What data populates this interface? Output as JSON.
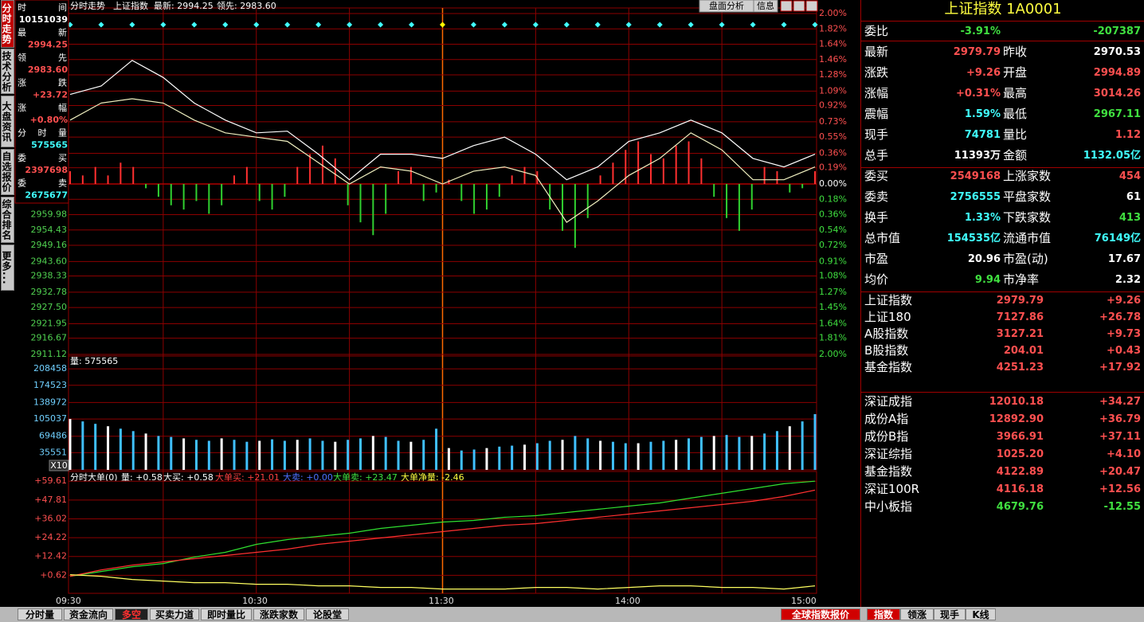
{
  "left_tabs": [
    "分时走势",
    "技术分析",
    "大盘资讯",
    "自选报价",
    "综合排名",
    "更多..."
  ],
  "info": [
    {
      "label": "时间",
      "value": "10151039",
      "color": "#ffffff"
    },
    {
      "label": "最新",
      "value": "2994.25",
      "color": "#ff5050"
    },
    {
      "label": "领先",
      "value": "2983.60",
      "color": "#ff5050"
    },
    {
      "label": "涨跌",
      "value": "+23.72",
      "color": "#ff5050"
    },
    {
      "label": "涨幅",
      "value": "+0.80%",
      "color": "#ff5050"
    },
    {
      "label": "分时量",
      "value": "575565",
      "color": "#40ffff"
    },
    {
      "label": "委买",
      "value": "2397698",
      "color": "#ff5050"
    },
    {
      "label": "委卖",
      "value": "2675677",
      "color": "#40ffff"
    }
  ],
  "header": {
    "panel": "分时走势",
    "name": "上证指数",
    "latest": "最新: 2994.25",
    "lead": "领先: 2983.60",
    "buttons": [
      "盘面分析",
      "信息"
    ]
  },
  "price_chart": {
    "ylim": [
      -2,
      2
    ],
    "pct_ticks": [
      {
        "value": 2,
        "label": "2.00%"
      },
      {
        "value": 1.82,
        "label": "1.82%"
      },
      {
        "value": 1.64,
        "label": "1.64%"
      },
      {
        "value": 1.46,
        "label": "1.46%"
      },
      {
        "value": 1.28,
        "label": "1.28%"
      },
      {
        "value": 1.09,
        "label": "1.09%"
      },
      {
        "value": 0.92,
        "label": "0.92%"
      },
      {
        "value": 0.73,
        "label": "0.73%"
      },
      {
        "value": 0.55,
        "label": "0.55%"
      },
      {
        "value": 0.36,
        "label": "0.36%"
      },
      {
        "value": 0.19,
        "label": "0.19%"
      },
      {
        "value": 0,
        "label": "0.00%"
      },
      {
        "value": -0.18,
        "label": "0.18%"
      },
      {
        "value": -0.36,
        "label": "0.36%"
      },
      {
        "value": -0.54,
        "label": "0.54%"
      },
      {
        "value": -0.72,
        "label": "0.72%"
      },
      {
        "value": -0.91,
        "label": "0.91%"
      },
      {
        "value": -1.08,
        "label": "1.08%"
      },
      {
        "value": -1.27,
        "label": "1.27%"
      },
      {
        "value": -1.45,
        "label": "1.45%"
      },
      {
        "value": -1.64,
        "label": "1.64%"
      },
      {
        "value": -1.81,
        "label": "1.81%"
      },
      {
        "value": -2,
        "label": "2.00%"
      }
    ],
    "price_ticks": [
      {
        "value": -0.36,
        "label": "2959.98"
      },
      {
        "value": -0.54,
        "label": "2954.43"
      },
      {
        "value": -0.72,
        "label": "2949.16"
      },
      {
        "value": -0.91,
        "label": "2943.60"
      },
      {
        "value": -1.08,
        "label": "2938.33"
      },
      {
        "value": -1.27,
        "label": "2932.78"
      },
      {
        "value": -1.45,
        "label": "2927.50"
      },
      {
        "value": -1.64,
        "label": "2921.95"
      },
      {
        "value": -1.81,
        "label": "2916.67"
      },
      {
        "value": -2,
        "label": "2911.12"
      }
    ],
    "series": [
      {
        "color": "#ffffff",
        "values": [
          1.05,
          1.15,
          1.45,
          1.25,
          0.95,
          0.75,
          0.6,
          0.62,
          0.35,
          0.05,
          0.35,
          0.35,
          0.3,
          0.45,
          0.55,
          0.35,
          0.05,
          0.2,
          0.5,
          0.6,
          0.75,
          0.6,
          0.3,
          0.2,
          0.35
        ]
      },
      {
        "color": "#f0f0c0",
        "values": [
          0.75,
          0.95,
          1.0,
          0.95,
          0.75,
          0.6,
          0.55,
          0.5,
          0.25,
          0.0,
          0.2,
          0.15,
          0.0,
          0.15,
          0.2,
          0.1,
          -0.45,
          -0.2,
          0.1,
          0.3,
          0.6,
          0.4,
          0.05,
          0.05,
          0.2
        ]
      }
    ],
    "bars": [
      0.15,
      0.1,
      0.2,
      0.1,
      0.25,
      0.2,
      -0.05,
      -0.15,
      -0.25,
      -0.3,
      -0.2,
      -0.35,
      -0.25,
      0.1,
      0.2,
      -0.2,
      -0.3,
      -0.15,
      0.2,
      0.35,
      0.45,
      0.3,
      -0.25,
      -0.45,
      -0.6,
      -0.35,
      0.15,
      0.2,
      -0.2,
      -0.1,
      0.05,
      -0.2,
      -0.35,
      -0.3,
      -0.15,
      0.1,
      0.2,
      0.15,
      -0.3,
      -0.55,
      -0.75,
      -0.4,
      0.1,
      0.25,
      0.4,
      0.5,
      0.35,
      0.3,
      0.45,
      0.5,
      0.3,
      -0.15,
      -0.4,
      -0.55,
      -0.3,
      0.2,
      0.15,
      -0.1,
      -0.05,
      0.15
    ]
  },
  "volume_chart": {
    "label": "量: 575565",
    "unit": "X10",
    "ylim": [
      0,
      230000
    ],
    "yticks": [
      208458,
      174523,
      138972,
      105037,
      69486,
      35551
    ],
    "values": [
      105000,
      100000,
      95000,
      90000,
      85000,
      80000,
      75000,
      70000,
      68000,
      65000,
      62000,
      60000,
      65000,
      62000,
      58000,
      60000,
      63000,
      60000,
      62000,
      65000,
      60000,
      58000,
      62000,
      65000,
      70000,
      68000,
      60000,
      58000,
      62000,
      85000,
      45000,
      40000,
      42000,
      45000,
      48000,
      50000,
      52000,
      55000,
      60000,
      62000,
      70000,
      65000,
      60000,
      58000,
      55000,
      55000,
      58000,
      60000,
      62000,
      65000,
      68000,
      70000,
      72000,
      68000,
      70000,
      75000,
      80000,
      90000,
      100000,
      115000
    ]
  },
  "order_chart": {
    "header": [
      {
        "text": "分时大单(0)",
        "color": "#ffffff"
      },
      {
        "text": "量: +0.58",
        "color": "#ffffff"
      },
      {
        "text": "大买: +0.58",
        "color": "#ffffff"
      },
      {
        "text": "大单买: +21.01",
        "color": "#ff4040"
      },
      {
        "text": "大卖: +0.00",
        "color": "#5070ff"
      },
      {
        "text": "大单卖: +23.47",
        "color": "#40e040"
      },
      {
        "text": "大单净量: -2.46",
        "color": "#ffff40"
      }
    ],
    "ylim": [
      -10.7,
      65.7
    ],
    "yticks": [
      {
        "value": 59.61,
        "label": "+59.61"
      },
      {
        "value": 47.81,
        "label": "+47.81"
      },
      {
        "value": 36.02,
        "label": "+36.02"
      },
      {
        "value": 24.22,
        "label": "+24.22"
      },
      {
        "value": 12.42,
        "label": "+12.42"
      },
      {
        "value": 0.62,
        "label": "+0.62"
      }
    ],
    "series": [
      {
        "color": "#30e030",
        "values": [
          0,
          3,
          6,
          8,
          12,
          15,
          20,
          23,
          25,
          27,
          30,
          32,
          34,
          35,
          37,
          38,
          40,
          42,
          44,
          46,
          49,
          52,
          55,
          58,
          59.6
        ]
      },
      {
        "color": "#ff3030",
        "values": [
          0,
          4,
          7,
          9,
          11,
          13,
          15,
          17,
          20,
          22,
          24,
          26,
          28,
          30,
          32,
          33,
          35,
          37,
          39,
          41,
          43,
          45,
          47,
          50,
          54
        ]
      },
      {
        "color": "#ffff60",
        "values": [
          1,
          0,
          -2,
          -3,
          -4,
          -4,
          -5,
          -5,
          -6,
          -6,
          -7,
          -7,
          -8,
          -8,
          -8,
          -7,
          -7,
          -8,
          -7,
          -6,
          -6,
          -7,
          -7,
          -8,
          -6
        ]
      }
    ]
  },
  "time_axis": [
    "09:30",
    "10:30",
    "11:30",
    "14:00",
    "15:00"
  ],
  "quote": {
    "title": "上证指数 1A0001",
    "ratio": {
      "label": "委比",
      "pct": "-3.91%",
      "diff": "-207387"
    },
    "rows": [
      [
        {
          "label": "最新",
          "value": "2979.79",
          "color": "#ff5050"
        },
        {
          "label": "昨收",
          "value": "2970.53",
          "color": "#ffffff"
        }
      ],
      [
        {
          "label": "涨跌",
          "value": "+9.26",
          "color": "#ff5050"
        },
        {
          "label": "开盘",
          "value": "2994.89",
          "color": "#ff5050"
        }
      ],
      [
        {
          "label": "涨幅",
          "value": "+0.31%",
          "color": "#ff5050"
        },
        {
          "label": "最高",
          "value": "3014.26",
          "color": "#ff5050"
        }
      ],
      [
        {
          "label": "震幅",
          "value": "1.59%",
          "color": "#40ffff"
        },
        {
          "label": "最低",
          "value": "2967.11",
          "color": "#40e040"
        }
      ],
      [
        {
          "label": "现手",
          "value": "74781",
          "color": "#40ffff"
        },
        {
          "label": "量比",
          "value": "1.12",
          "color": "#ff5050"
        }
      ],
      [
        {
          "label": "总手",
          "value": "11393万",
          "color": "#ffffff"
        },
        {
          "label": "金额",
          "value": "1132.05亿",
          "color": "#40ffff"
        }
      ],
      [
        {
          "label": "委买",
          "value": "2549168",
          "color": "#ff5050"
        },
        {
          "label": "上涨家数",
          "value": "454",
          "color": "#ff5050"
        }
      ],
      [
        {
          "label": "委卖",
          "value": "2756555",
          "color": "#40ffff"
        },
        {
          "label": "平盘家数",
          "value": "61",
          "color": "#ffffff"
        }
      ],
      [
        {
          "label": "换手",
          "value": "1.33%",
          "color": "#40ffff"
        },
        {
          "label": "下跌家数",
          "value": "413",
          "color": "#40e040"
        }
      ],
      [
        {
          "label": "总市值",
          "value": "154535亿",
          "color": "#40ffff"
        },
        {
          "label": "流通市值",
          "value": "76149亿",
          "color": "#40ffff"
        }
      ],
      [
        {
          "label": "市盈",
          "value": "20.96",
          "color": "#ffffff"
        },
        {
          "label": "市盈(动)",
          "value": "17.67",
          "color": "#ffffff"
        }
      ],
      [
        {
          "label": "均价",
          "value": "9.94",
          "color": "#40e040"
        },
        {
          "label": "市净率",
          "value": "2.32",
          "color": "#ffffff"
        }
      ]
    ]
  },
  "index_groups": [
    [
      {
        "name": "上证指数",
        "value": "2979.79",
        "change": "+9.26",
        "color": "#ff5050"
      },
      {
        "name": "上证180",
        "value": "7127.86",
        "change": "+26.78",
        "color": "#ff5050"
      },
      {
        "name": "A股指数",
        "value": "3127.21",
        "change": "+9.73",
        "color": "#ff5050"
      },
      {
        "name": "B股指数",
        "value": "204.01",
        "change": "+0.43",
        "color": "#ff5050"
      },
      {
        "name": "基金指数",
        "value": "4251.23",
        "change": "+17.92",
        "color": "#ff5050"
      }
    ],
    [
      {
        "name": "深证成指",
        "value": "12010.18",
        "change": "+34.27",
        "color": "#ff5050"
      },
      {
        "name": "成份A指",
        "value": "12892.90",
        "change": "+36.79",
        "color": "#ff5050"
      },
      {
        "name": "成份B指",
        "value": "3966.91",
        "change": "+37.11",
        "color": "#ff5050"
      },
      {
        "name": "深证综指",
        "value": "1025.20",
        "change": "+4.10",
        "color": "#ff5050"
      },
      {
        "name": "基金指数",
        "value": "4122.89",
        "change": "+20.47",
        "color": "#ff5050"
      },
      {
        "name": "深证100R",
        "value": "4116.18",
        "change": "+12.56",
        "color": "#ff5050"
      },
      {
        "name": "中小板指",
        "value": "4679.76",
        "change": "-12.55",
        "color": "#40e040"
      }
    ]
  ],
  "bottom_tabs": [
    "分时量",
    "资金流向",
    "多空",
    "买卖力道",
    "即时量比",
    "涨跌家数",
    "论股堂"
  ],
  "bottom_right_tabs": [
    "全球指数报价",
    "指数",
    "领涨",
    "现手",
    "K线"
  ]
}
